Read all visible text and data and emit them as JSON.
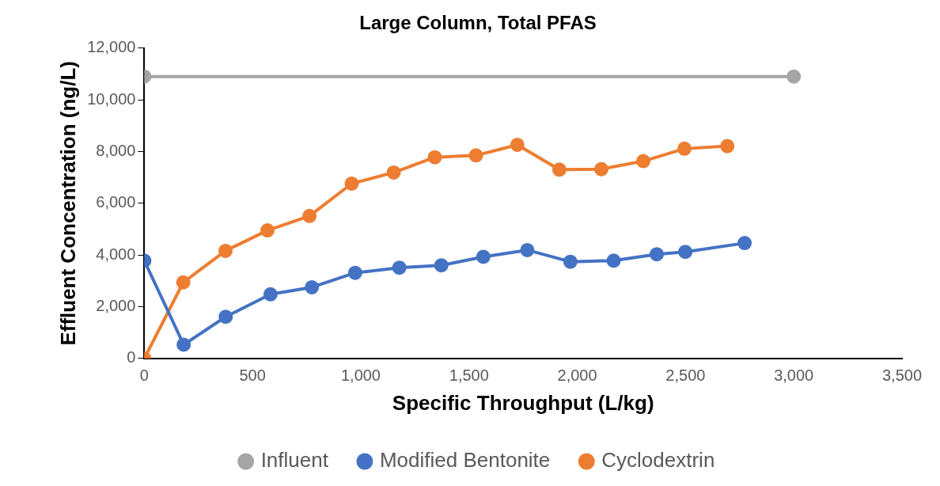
{
  "chart_data": {
    "type": "line",
    "title": "Large Column, Total PFAS",
    "xlabel": "Specific Throughput (L/kg)",
    "ylabel": "Effluent Concentration (ng/L)",
    "xlim": [
      0,
      3500
    ],
    "xticks": [
      0,
      500,
      {
        "value": 1000,
        "label": "1,000"
      },
      {
        "value": 1500,
        "label": "1,500"
      },
      {
        "value": 2000,
        "label": "2,000"
      },
      {
        "value": 2500,
        "label": "2,500"
      },
      {
        "value": 3000,
        "label": "3,000"
      },
      {
        "value": 3500,
        "label": "3,500"
      }
    ],
    "ylim": [
      0,
      12000
    ],
    "yticks": [
      0,
      {
        "value": 2000,
        "label": "2,000"
      },
      {
        "value": 4000,
        "label": "4,000"
      },
      {
        "value": 6000,
        "label": "6,000"
      },
      {
        "value": 8000,
        "label": "8,000"
      },
      {
        "value": 10000,
        "label": "10,000"
      },
      {
        "value": 12000,
        "label": "12,000"
      }
    ],
    "grid": false,
    "legend": "bottom",
    "marker": "circle",
    "line_style": "solid",
    "series": [
      {
        "name": "Influent",
        "color": "#a5a5a5",
        "x": [
          0,
          3000
        ],
        "values": [
          10900,
          10900
        ]
      },
      {
        "name": "Modified Bentonite",
        "color": "#4472c4",
        "x": [
          0,
          182,
          376,
          583,
          774,
          974,
          1178,
          1372,
          1566,
          1769,
          1968,
          2168,
          2367,
          2499,
          2773
        ],
        "values": [
          3780,
          530,
          1610,
          2480,
          2750,
          3310,
          3510,
          3600,
          3930,
          4190,
          3740,
          3780,
          4030,
          4120,
          4460
        ]
      },
      {
        "name": "Cyclodextrin",
        "color": "#ed7d31",
        "x": [
          0,
          180,
          375,
          569,
          763,
          958,
          1152,
          1342,
          1532,
          1723,
          1917,
          2111,
          2305,
          2495,
          2693
        ],
        "values": [
          0,
          2940,
          4160,
          4950,
          5510,
          6760,
          7190,
          7780,
          7850,
          8260,
          7300,
          7320,
          7630,
          8110,
          8210
        ]
      }
    ]
  }
}
